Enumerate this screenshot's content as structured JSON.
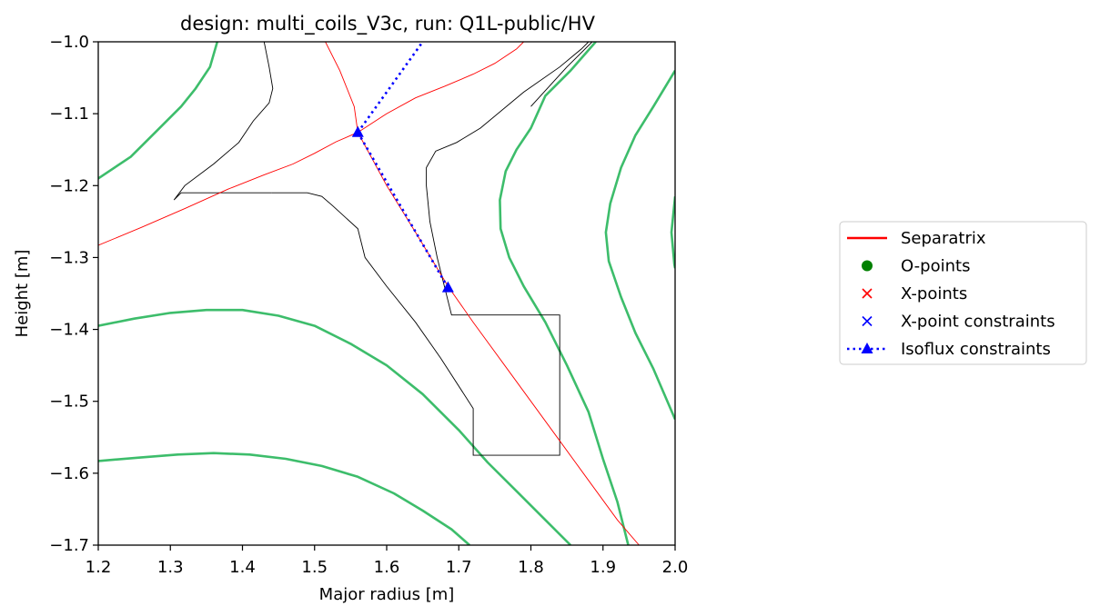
{
  "chart_data": {
    "type": "line",
    "title": "design: multi_coils_V3c, run: Q1L-public/HV",
    "xlabel": "Major radius [m]",
    "ylabel": "Height [m]",
    "xlim": [
      1.2,
      2.0
    ],
    "ylim": [
      -1.7,
      -1.0
    ],
    "x_ticks": [
      1.2,
      1.3,
      1.4,
      1.5,
      1.6,
      1.7,
      1.8,
      1.9,
      2.0
    ],
    "x_tick_labels": [
      "1.2",
      "1.3",
      "1.4",
      "1.5",
      "1.6",
      "1.7",
      "1.8",
      "1.9",
      "2.0"
    ],
    "y_ticks": [
      -1.0,
      -1.1,
      -1.2,
      -1.3,
      -1.4,
      -1.5,
      -1.6,
      -1.7
    ],
    "y_tick_labels": [
      "−1.0",
      "−1.1",
      "−1.2",
      "−1.3",
      "−1.4",
      "−1.5",
      "−1.6",
      "−1.7"
    ],
    "grid": false,
    "legend_placement": "right",
    "legend": [
      {
        "label": "Separatrix",
        "style": "line",
        "color": "#ff0000"
      },
      {
        "label": "O-points",
        "style": "dot",
        "color": "#008000"
      },
      {
        "label": "X-points",
        "style": "x",
        "color": "#ff0000"
      },
      {
        "label": "X-point constraints",
        "style": "x",
        "color": "#0000ff"
      },
      {
        "label": "Isoflux constraints",
        "style": "dotted-triangle",
        "color": "#0000ff"
      }
    ],
    "flux_contours": {
      "color": "#3dbd6b",
      "lines": [
        [
          [
            1.2,
            -1.19
          ],
          [
            1.245,
            -1.16
          ],
          [
            1.28,
            -1.125
          ],
          [
            1.315,
            -1.09
          ],
          [
            1.335,
            -1.065
          ],
          [
            1.355,
            -1.035
          ],
          [
            1.365,
            -1.0
          ]
        ],
        [
          [
            1.2,
            -1.395
          ],
          [
            1.25,
            -1.385
          ],
          [
            1.3,
            -1.377
          ],
          [
            1.35,
            -1.373
          ],
          [
            1.4,
            -1.373
          ],
          [
            1.45,
            -1.381
          ],
          [
            1.5,
            -1.395
          ],
          [
            1.55,
            -1.42
          ],
          [
            1.6,
            -1.45
          ],
          [
            1.65,
            -1.49
          ],
          [
            1.7,
            -1.54
          ],
          [
            1.74,
            -1.585
          ],
          [
            1.78,
            -1.625
          ],
          [
            1.82,
            -1.665
          ],
          [
            1.855,
            -1.7
          ]
        ],
        [
          [
            1.2,
            -1.583
          ],
          [
            1.26,
            -1.578
          ],
          [
            1.31,
            -1.574
          ],
          [
            1.36,
            -1.572
          ],
          [
            1.41,
            -1.574
          ],
          [
            1.46,
            -1.58
          ],
          [
            1.51,
            -1.59
          ],
          [
            1.56,
            -1.605
          ],
          [
            1.61,
            -1.628
          ],
          [
            1.65,
            -1.652
          ],
          [
            1.69,
            -1.678
          ],
          [
            1.715,
            -1.7
          ]
        ],
        [
          [
            1.89,
            -1.0
          ],
          [
            1.855,
            -1.04
          ],
          [
            1.82,
            -1.075
          ],
          [
            1.8,
            -1.12
          ],
          [
            1.78,
            -1.15
          ],
          [
            1.765,
            -1.18
          ],
          [
            1.757,
            -1.22
          ],
          [
            1.758,
            -1.26
          ],
          [
            1.77,
            -1.3
          ],
          [
            1.79,
            -1.34
          ],
          [
            1.82,
            -1.39
          ],
          [
            1.85,
            -1.45
          ],
          [
            1.88,
            -1.515
          ],
          [
            1.9,
            -1.58
          ],
          [
            1.92,
            -1.64
          ],
          [
            1.935,
            -1.7
          ]
        ],
        [
          [
            2.0,
            -1.04
          ],
          [
            1.97,
            -1.09
          ],
          [
            1.945,
            -1.13
          ],
          [
            1.925,
            -1.175
          ],
          [
            1.91,
            -1.225
          ],
          [
            1.904,
            -1.265
          ],
          [
            1.908,
            -1.305
          ],
          [
            1.925,
            -1.355
          ],
          [
            1.945,
            -1.405
          ],
          [
            1.97,
            -1.455
          ],
          [
            2.0,
            -1.525
          ]
        ],
        [
          [
            2.0,
            -1.215
          ],
          [
            1.995,
            -1.265
          ],
          [
            1.999,
            -1.31
          ],
          [
            2.0,
            -1.315
          ]
        ]
      ]
    },
    "separatrix": {
      "color": "#ff0000",
      "lines": [
        [
          [
            1.2,
            -1.283
          ],
          [
            1.26,
            -1.258
          ],
          [
            1.32,
            -1.232
          ],
          [
            1.38,
            -1.205
          ],
          [
            1.43,
            -1.185
          ],
          [
            1.47,
            -1.17
          ],
          [
            1.5,
            -1.155
          ],
          [
            1.53,
            -1.139
          ],
          [
            1.56,
            -1.126
          ],
          [
            1.6,
            -1.1
          ],
          [
            1.64,
            -1.078
          ],
          [
            1.68,
            -1.062
          ],
          [
            1.72,
            -1.045
          ],
          [
            1.75,
            -1.03
          ],
          [
            1.78,
            -1.01
          ],
          [
            1.79,
            -1.0
          ]
        ],
        [
          [
            1.515,
            -1.0
          ],
          [
            1.535,
            -1.04
          ],
          [
            1.555,
            -1.09
          ],
          [
            1.56,
            -1.126
          ],
          [
            1.6,
            -1.2
          ],
          [
            1.64,
            -1.265
          ],
          [
            1.685,
            -1.34
          ],
          [
            1.72,
            -1.39
          ],
          [
            1.76,
            -1.445
          ],
          [
            1.8,
            -1.5
          ],
          [
            1.84,
            -1.555
          ],
          [
            1.88,
            -1.61
          ],
          [
            1.92,
            -1.665
          ],
          [
            1.95,
            -1.7
          ]
        ]
      ]
    },
    "wall": {
      "color": "#000000",
      "lines": [
        [
          [
            1.43,
            -1.0
          ],
          [
            1.437,
            -1.035
          ],
          [
            1.442,
            -1.065
          ],
          [
            1.437,
            -1.085
          ],
          [
            1.415,
            -1.11
          ],
          [
            1.395,
            -1.14
          ],
          [
            1.36,
            -1.17
          ],
          [
            1.32,
            -1.2
          ],
          [
            1.305,
            -1.22
          ],
          [
            1.315,
            -1.21
          ],
          [
            1.44,
            -1.21
          ]
        ],
        [
          [
            1.44,
            -1.21
          ],
          [
            1.49,
            -1.21
          ],
          [
            1.51,
            -1.215
          ],
          [
            1.525,
            -1.228
          ],
          [
            1.56,
            -1.26
          ],
          [
            1.57,
            -1.3
          ],
          [
            1.6,
            -1.34
          ],
          [
            1.64,
            -1.39
          ],
          [
            1.675,
            -1.44
          ],
          [
            1.72,
            -1.51
          ],
          [
            1.72,
            -1.575
          ],
          [
            1.84,
            -1.575
          ],
          [
            1.84,
            -1.38
          ],
          [
            1.69,
            -1.38
          ],
          [
            1.67,
            -1.3
          ],
          [
            1.66,
            -1.25
          ],
          [
            1.655,
            -1.2
          ],
          [
            1.655,
            -1.175
          ],
          [
            1.668,
            -1.152
          ],
          [
            1.697,
            -1.14
          ],
          [
            1.73,
            -1.12
          ],
          [
            1.79,
            -1.07
          ],
          [
            1.84,
            -1.035
          ],
          [
            1.87,
            -1.01
          ],
          [
            1.88,
            -1.0
          ]
        ],
        [
          [
            1.8,
            -1.09
          ],
          [
            1.85,
            -1.035
          ],
          [
            1.885,
            -1.0
          ]
        ]
      ]
    },
    "isoflux_constraints": {
      "color": "#0000ff",
      "segments": [
        [
          [
            1.56,
            -1.126
          ],
          [
            1.65,
            -1.0
          ]
        ],
        [
          [
            1.56,
            -1.126
          ],
          [
            1.685,
            -1.342
          ]
        ]
      ],
      "points": [
        [
          1.56,
          -1.126
        ],
        [
          1.685,
          -1.342
        ]
      ]
    }
  }
}
